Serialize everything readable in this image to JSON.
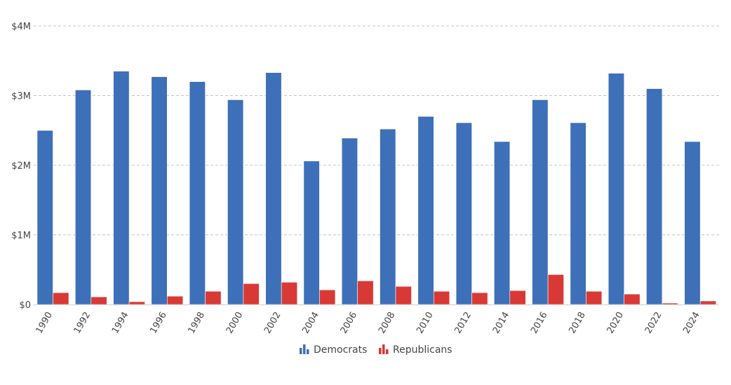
{
  "chart_data": {
    "type": "bar",
    "categories": [
      "1990",
      "1992",
      "1994",
      "1996",
      "1998",
      "2000",
      "2002",
      "2004",
      "2006",
      "2008",
      "2010",
      "2012",
      "2014",
      "2016",
      "2018",
      "2020",
      "2022",
      "2024"
    ],
    "series": [
      {
        "name": "Democrats",
        "color": "#3d70b8",
        "values": [
          2.5,
          3.08,
          3.35,
          3.27,
          3.2,
          2.94,
          3.33,
          2.06,
          2.39,
          2.52,
          2.7,
          2.61,
          2.34,
          2.94,
          2.61,
          3.32,
          3.1,
          2.34
        ]
      },
      {
        "name": "Republicans",
        "color": "#d93935",
        "values": [
          0.17,
          0.11,
          0.04,
          0.12,
          0.19,
          0.3,
          0.32,
          0.21,
          0.34,
          0.26,
          0.19,
          0.17,
          0.2,
          0.43,
          0.19,
          0.15,
          0.02,
          0.05
        ]
      }
    ],
    "yticks": [
      {
        "value": 0,
        "label": "$0"
      },
      {
        "value": 1,
        "label": "$1M"
      },
      {
        "value": 2,
        "label": "$2M"
      },
      {
        "value": 3,
        "label": "$3M"
      },
      {
        "value": 4,
        "label": "$4M"
      }
    ],
    "ylim": [
      0,
      4
    ],
    "units": "millions of dollars",
    "grid": true,
    "legend_position": "bottom-center",
    "xlabel": "",
    "ylabel": "",
    "title": ""
  }
}
